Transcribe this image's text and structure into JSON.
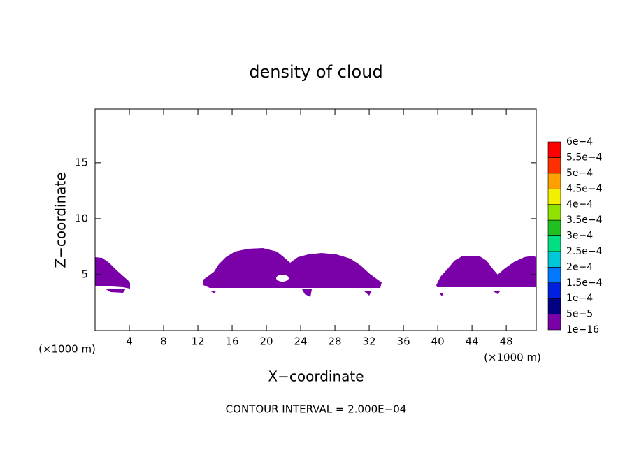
{
  "chart_data": {
    "type": "contour",
    "title": "density of cloud",
    "x_label": "X−coordinate",
    "y_label": "Z−coordinate",
    "x_unit": "(×1000 m)",
    "footnote": "CONTOUR INTERVAL = 2.000E−04",
    "xlim": [
      0,
      51.5
    ],
    "ylim": [
      0,
      19.8
    ],
    "xticks": [
      4,
      8,
      12,
      16,
      20,
      24,
      28,
      32,
      36,
      40,
      44,
      48
    ],
    "yticks": [
      5,
      10,
      15
    ],
    "fill_color": "#7a00a8",
    "colorbar": {
      "levels": [
        {
          "value": 1e-16,
          "label": "1e−16"
        },
        {
          "value": 5e-05,
          "label": "5e−5"
        },
        {
          "value": 0.0001,
          "label": "1e−4"
        },
        {
          "value": 0.00015,
          "label": "1.5e−4"
        },
        {
          "value": 0.0002,
          "label": "2e−4"
        },
        {
          "value": 0.00025,
          "label": "2.5e−4"
        },
        {
          "value": 0.0003,
          "label": "3e−4"
        },
        {
          "value": 0.00035,
          "label": "3.5e−4"
        },
        {
          "value": 0.0004,
          "label": "4e−4"
        },
        {
          "value": 0.00045,
          "label": "4.5e−4"
        },
        {
          "value": 0.0005,
          "label": "5e−4"
        },
        {
          "value": 0.00055,
          "label": "5.5e−4"
        },
        {
          "value": 0.0006,
          "label": "6e−4"
        }
      ],
      "colors": [
        "#7a00a8",
        "#000080",
        "#0020e0",
        "#0078ff",
        "#00c8d8",
        "#00e080",
        "#20c020",
        "#90e000",
        "#f0f000",
        "#ffa000",
        "#ff3000",
        "#ff0000"
      ]
    }
  }
}
